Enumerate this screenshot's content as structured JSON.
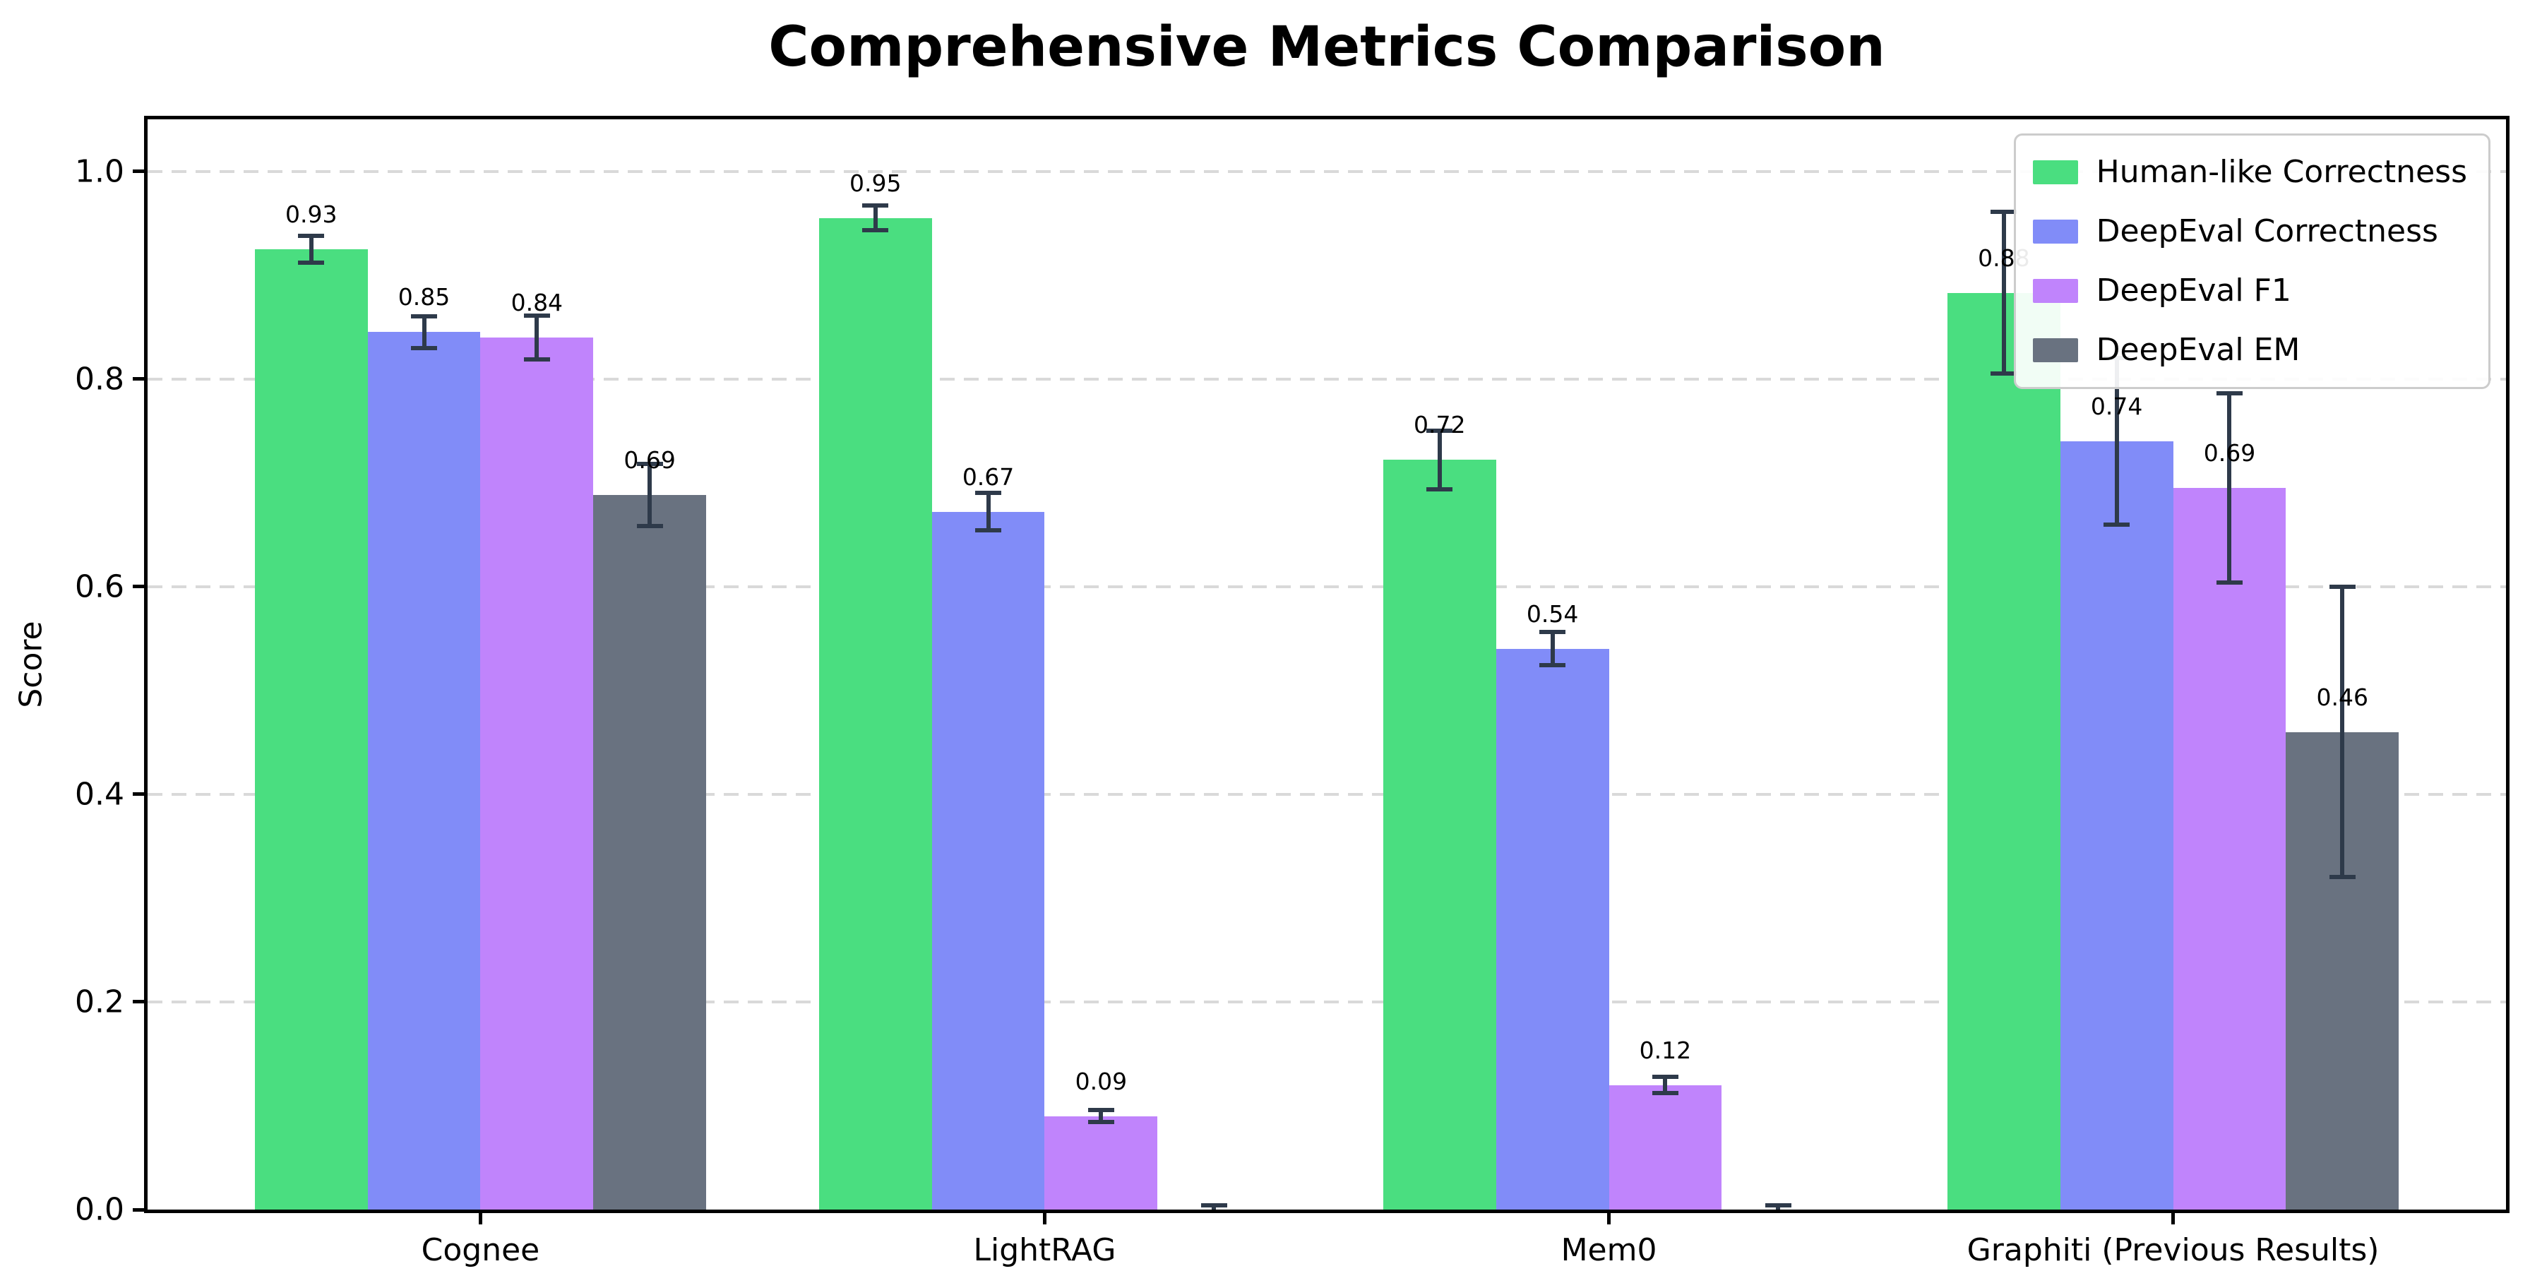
{
  "chart_data": {
    "type": "bar",
    "title": "Comprehensive Metrics Comparison",
    "xlabel": "",
    "ylabel": "Score",
    "ylim": [
      0,
      1.05
    ],
    "yticks": [
      0.0,
      0.2,
      0.4,
      0.6,
      0.8,
      1.0
    ],
    "grid": "horizontal-dashed",
    "grid_color": "#d9d9d9",
    "error_bar_color": "#2e3a4a",
    "legend_position": "upper-right",
    "categories": [
      "Cognee",
      "LightRAG",
      "Mem0",
      "Graphiti (Previous Results)"
    ],
    "series": [
      {
        "name": "Human-like Correctness",
        "color": "#4ade80",
        "values": [
          0.925,
          0.955,
          0.722,
          0.883
        ],
        "value_labels": [
          "0.93",
          "0.95",
          "0.72",
          "0.88"
        ],
        "errors": [
          0.013,
          0.012,
          0.028,
          0.078
        ]
      },
      {
        "name": "DeepEval Correctness",
        "color": "#818cf8",
        "values": [
          0.845,
          0.672,
          0.54,
          0.74
        ],
        "value_labels": [
          "0.85",
          "0.67",
          "0.54",
          "0.74"
        ],
        "errors": [
          0.015,
          0.018,
          0.016,
          0.08
        ]
      },
      {
        "name": "DeepEval F1",
        "color": "#c084fc",
        "values": [
          0.84,
          0.09,
          0.12,
          0.695
        ],
        "value_labels": [
          "0.84",
          "0.09",
          "0.12",
          "0.69"
        ],
        "errors": [
          0.021,
          0.006,
          0.008,
          0.091
        ]
      },
      {
        "name": "DeepEval EM",
        "color": "#697280",
        "values": [
          0.688,
          0.0,
          0.0,
          0.46
        ],
        "value_labels": [
          "0.69",
          null,
          null,
          "0.46"
        ],
        "errors": [
          0.03,
          0.004,
          0.004,
          0.14
        ]
      }
    ]
  }
}
